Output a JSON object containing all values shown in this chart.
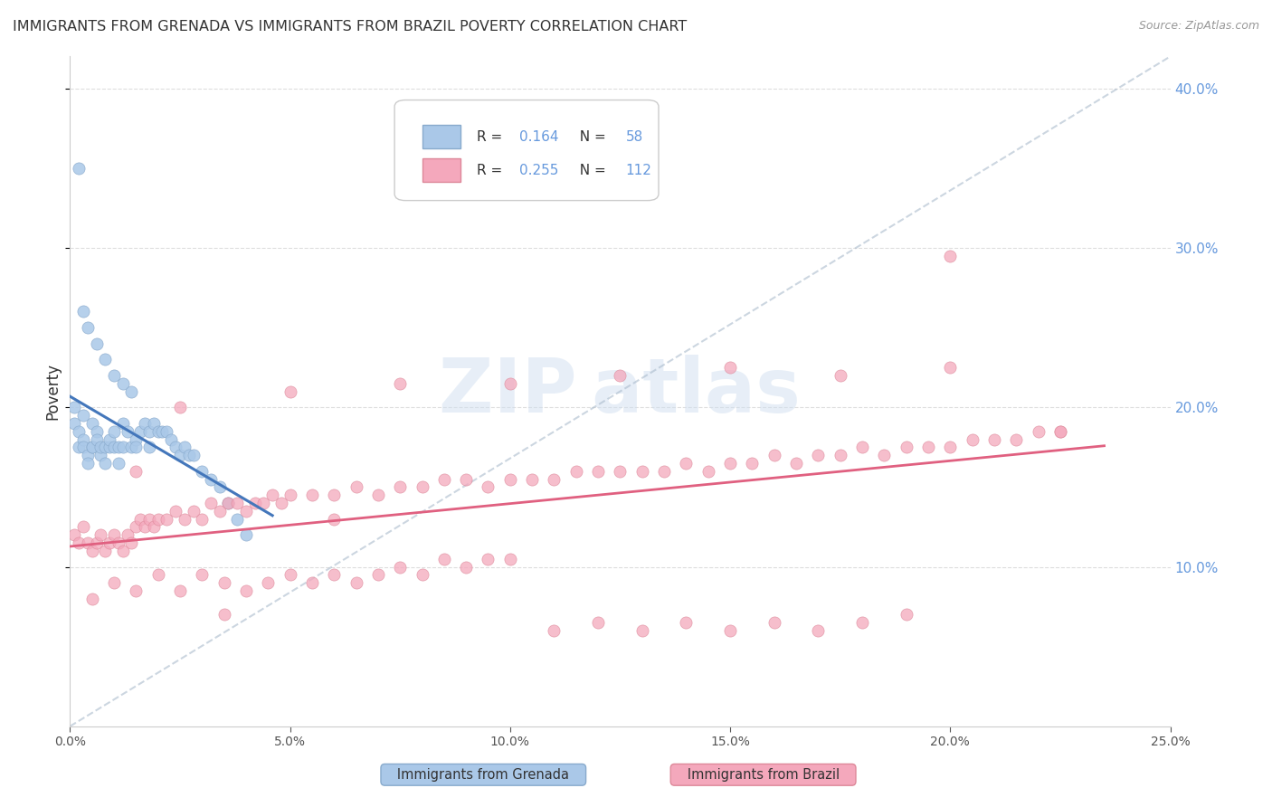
{
  "title": "IMMIGRANTS FROM GRENADA VS IMMIGRANTS FROM BRAZIL POVERTY CORRELATION CHART",
  "source": "Source: ZipAtlas.com",
  "ylabel": "Poverty",
  "xlim": [
    0.0,
    0.25
  ],
  "ylim": [
    0.0,
    0.42
  ],
  "legend_r_grenada": "0.164",
  "legend_n_grenada": "58",
  "legend_r_brazil": "0.255",
  "legend_n_brazil": "112",
  "color_grenada": "#aac8e8",
  "color_brazil": "#f4a8bc",
  "color_grenada_line": "#4477bb",
  "color_brazil_line": "#e06080",
  "color_grenada_edge": "#88aacc",
  "color_brazil_edge": "#dd8899",
  "watermark_color": "#d0dff0",
  "background_color": "#ffffff",
  "grid_color": "#dddddd",
  "title_color": "#333333",
  "right_tick_color": "#6699dd",
  "grenada_x": [
    0.001,
    0.001,
    0.002,
    0.002,
    0.003,
    0.003,
    0.003,
    0.004,
    0.004,
    0.005,
    0.005,
    0.005,
    0.006,
    0.006,
    0.007,
    0.007,
    0.008,
    0.008,
    0.009,
    0.009,
    0.01,
    0.01,
    0.011,
    0.011,
    0.012,
    0.012,
    0.013,
    0.014,
    0.015,
    0.015,
    0.016,
    0.017,
    0.018,
    0.018,
    0.019,
    0.02,
    0.021,
    0.022,
    0.023,
    0.024,
    0.025,
    0.026,
    0.027,
    0.028,
    0.03,
    0.032,
    0.034,
    0.036,
    0.038,
    0.04,
    0.002,
    0.003,
    0.004,
    0.006,
    0.008,
    0.01,
    0.012,
    0.014
  ],
  "grenada_y": [
    0.19,
    0.2,
    0.185,
    0.175,
    0.195,
    0.18,
    0.175,
    0.17,
    0.165,
    0.175,
    0.175,
    0.19,
    0.185,
    0.18,
    0.17,
    0.175,
    0.165,
    0.175,
    0.175,
    0.18,
    0.185,
    0.175,
    0.165,
    0.175,
    0.175,
    0.19,
    0.185,
    0.175,
    0.18,
    0.175,
    0.185,
    0.19,
    0.185,
    0.175,
    0.19,
    0.185,
    0.185,
    0.185,
    0.18,
    0.175,
    0.17,
    0.175,
    0.17,
    0.17,
    0.16,
    0.155,
    0.15,
    0.14,
    0.13,
    0.12,
    0.35,
    0.26,
    0.25,
    0.24,
    0.23,
    0.22,
    0.215,
    0.21
  ],
  "brazil_x": [
    0.001,
    0.002,
    0.003,
    0.004,
    0.005,
    0.006,
    0.007,
    0.008,
    0.009,
    0.01,
    0.011,
    0.012,
    0.013,
    0.014,
    0.015,
    0.016,
    0.017,
    0.018,
    0.019,
    0.02,
    0.022,
    0.024,
    0.026,
    0.028,
    0.03,
    0.032,
    0.034,
    0.036,
    0.038,
    0.04,
    0.042,
    0.044,
    0.046,
    0.048,
    0.05,
    0.055,
    0.06,
    0.065,
    0.07,
    0.075,
    0.08,
    0.085,
    0.09,
    0.095,
    0.1,
    0.105,
    0.11,
    0.115,
    0.12,
    0.125,
    0.13,
    0.135,
    0.14,
    0.145,
    0.15,
    0.155,
    0.16,
    0.165,
    0.17,
    0.175,
    0.18,
    0.185,
    0.19,
    0.195,
    0.2,
    0.205,
    0.21,
    0.215,
    0.22,
    0.225,
    0.005,
    0.01,
    0.015,
    0.02,
    0.025,
    0.03,
    0.035,
    0.04,
    0.045,
    0.05,
    0.055,
    0.06,
    0.065,
    0.07,
    0.075,
    0.08,
    0.085,
    0.09,
    0.095,
    0.1,
    0.11,
    0.12,
    0.13,
    0.14,
    0.15,
    0.16,
    0.17,
    0.18,
    0.19,
    0.2,
    0.025,
    0.05,
    0.075,
    0.1,
    0.125,
    0.15,
    0.175,
    0.2,
    0.225,
    0.015,
    0.035,
    0.06
  ],
  "brazil_y": [
    0.12,
    0.115,
    0.125,
    0.115,
    0.11,
    0.115,
    0.12,
    0.11,
    0.115,
    0.12,
    0.115,
    0.11,
    0.12,
    0.115,
    0.125,
    0.13,
    0.125,
    0.13,
    0.125,
    0.13,
    0.13,
    0.135,
    0.13,
    0.135,
    0.13,
    0.14,
    0.135,
    0.14,
    0.14,
    0.135,
    0.14,
    0.14,
    0.145,
    0.14,
    0.145,
    0.145,
    0.145,
    0.15,
    0.145,
    0.15,
    0.15,
    0.155,
    0.155,
    0.15,
    0.155,
    0.155,
    0.155,
    0.16,
    0.16,
    0.16,
    0.16,
    0.16,
    0.165,
    0.16,
    0.165,
    0.165,
    0.17,
    0.165,
    0.17,
    0.17,
    0.175,
    0.17,
    0.175,
    0.175,
    0.175,
    0.18,
    0.18,
    0.18,
    0.185,
    0.185,
    0.08,
    0.09,
    0.085,
    0.095,
    0.085,
    0.095,
    0.09,
    0.085,
    0.09,
    0.095,
    0.09,
    0.095,
    0.09,
    0.095,
    0.1,
    0.095,
    0.105,
    0.1,
    0.105,
    0.105,
    0.06,
    0.065,
    0.06,
    0.065,
    0.06,
    0.065,
    0.06,
    0.065,
    0.07,
    0.295,
    0.2,
    0.21,
    0.215,
    0.215,
    0.22,
    0.225,
    0.22,
    0.225,
    0.185,
    0.16,
    0.07,
    0.13
  ]
}
